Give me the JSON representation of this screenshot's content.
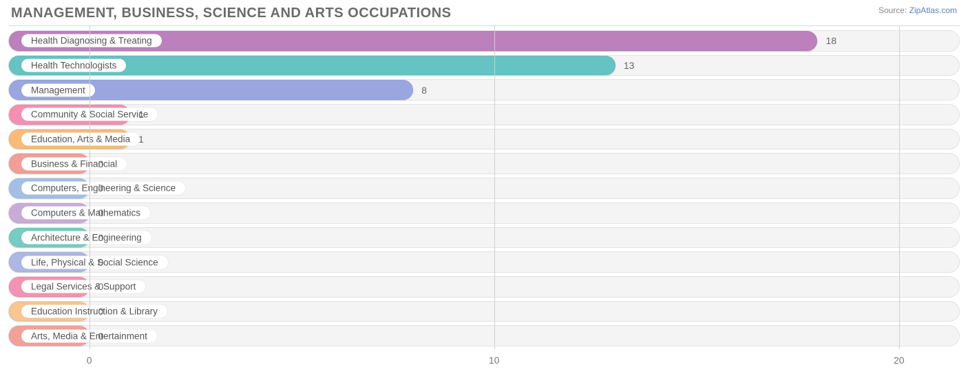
{
  "title": "MANAGEMENT, BUSINESS, SCIENCE AND ARTS OCCUPATIONS",
  "source_prefix": "Source: ",
  "source_name": "ZipAtlas.com",
  "chart": {
    "type": "bar-horizontal",
    "background_color": "#ffffff",
    "track_color": "#f4f4f4",
    "track_border": "#e2e2e2",
    "grid_color": "#cfcfcf",
    "x_min": -2,
    "x_max": 21.5,
    "ticks": [
      0,
      10,
      20
    ],
    "label_fontsize": 13.5,
    "value_fontsize": 14,
    "bars": [
      {
        "label": "Health Diagnosing & Treating",
        "value": 18,
        "color": "#bc80bd"
      },
      {
        "label": "Health Technologists",
        "value": 13,
        "color": "#65c3c3"
      },
      {
        "label": "Management",
        "value": 8,
        "color": "#9aa6e0"
      },
      {
        "label": "Community & Social Service",
        "value": 1,
        "color": "#f58fb0"
      },
      {
        "label": "Education, Arts & Media",
        "value": 1,
        "color": "#f9bb77"
      },
      {
        "label": "Business & Financial",
        "value": 0,
        "color": "#f29e97"
      },
      {
        "label": "Computers, Engineering & Science",
        "value": 0,
        "color": "#a3bfe6"
      },
      {
        "label": "Computers & Mathematics",
        "value": 0,
        "color": "#c9abd8"
      },
      {
        "label": "Architecture & Engineering",
        "value": 0,
        "color": "#76cbc2"
      },
      {
        "label": "Life, Physical & Social Science",
        "value": 0,
        "color": "#adb7e4"
      },
      {
        "label": "Legal Services & Support",
        "value": 0,
        "color": "#f492b4"
      },
      {
        "label": "Education Instruction & Library",
        "value": 0,
        "color": "#f8c690"
      },
      {
        "label": "Arts, Media & Entertainment",
        "value": 0,
        "color": "#f2a199"
      }
    ]
  }
}
